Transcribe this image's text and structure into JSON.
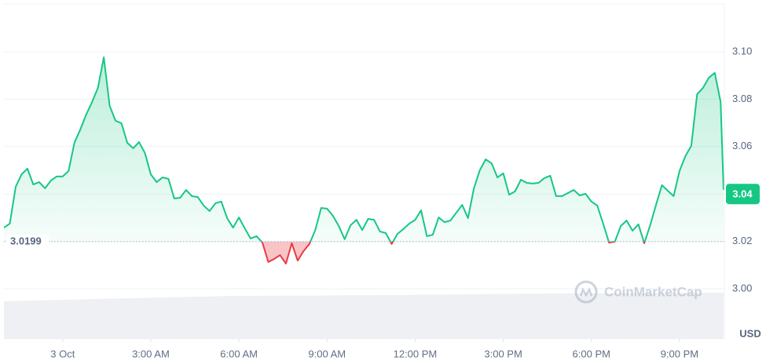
{
  "chart_data": {
    "type": "line",
    "x": [
      -2.0,
      -1.8,
      -1.6,
      -1.4,
      -1.2,
      -1.0,
      -0.8,
      -0.6,
      -0.4,
      -0.2,
      0.0,
      0.2,
      0.4,
      0.6,
      0.8,
      1.0,
      1.2,
      1.4,
      1.6,
      1.8,
      2.0,
      2.2,
      2.4,
      2.6,
      2.8,
      3.0,
      3.2,
      3.4,
      3.6,
      3.8,
      4.0,
      4.2,
      4.4,
      4.6,
      4.8,
      5.0,
      5.2,
      5.4,
      5.6,
      5.8,
      6.0,
      6.2,
      6.4,
      6.6,
      6.8,
      7.0,
      7.2,
      7.4,
      7.6,
      7.8,
      8.0,
      8.2,
      8.4,
      8.6,
      8.8,
      9.0,
      9.2,
      9.4,
      9.6,
      9.8,
      10.0,
      10.2,
      10.4,
      10.6,
      10.8,
      11.0,
      11.2,
      11.4,
      11.6,
      11.8,
      12.0,
      12.2,
      12.4,
      12.6,
      12.8,
      13.0,
      13.2,
      13.4,
      13.6,
      13.8,
      14.0,
      14.2,
      14.4,
      14.6,
      14.8,
      15.0,
      15.2,
      15.4,
      15.6,
      15.8,
      16.0,
      16.2,
      16.4,
      16.6,
      16.8,
      17.0,
      17.2,
      17.4,
      17.6,
      17.8,
      18.0,
      18.2,
      18.4,
      18.6,
      18.8,
      19.0,
      19.2,
      19.4,
      19.6,
      19.8,
      20.0,
      20.2,
      20.4,
      20.6,
      20.8,
      21.0,
      21.2,
      21.4,
      21.6,
      21.8,
      22.0,
      22.2,
      22.4,
      22.5
    ],
    "series": [
      {
        "name": "USD",
        "color": "#16c784",
        "below_color": "#ea3943",
        "values": [
          3.0258,
          3.0275,
          3.043,
          3.0483,
          3.0507,
          3.044,
          3.045,
          3.0424,
          3.0457,
          3.0474,
          3.0474,
          3.0497,
          3.0616,
          3.0672,
          3.0735,
          3.0788,
          3.0848,
          3.0977,
          3.0772,
          3.0709,
          3.0699,
          3.0616,
          3.0593,
          3.0619,
          3.0573,
          3.0483,
          3.045,
          3.047,
          3.0464,
          3.0381,
          3.0384,
          3.0417,
          3.0391,
          3.0387,
          3.0351,
          3.0328,
          3.0361,
          3.0368,
          3.0298,
          3.0258,
          3.0301,
          3.0255,
          3.0212,
          3.0222,
          3.0195,
          3.0113,
          3.0126,
          3.0142,
          3.0106,
          3.0192,
          3.0119,
          3.0159,
          3.0189,
          3.0248,
          3.0341,
          3.0338,
          3.0308,
          3.0265,
          3.0209,
          3.0268,
          3.0291,
          3.0248,
          3.0295,
          3.0291,
          3.0242,
          3.0235,
          3.0189,
          3.0232,
          3.0252,
          3.0275,
          3.0291,
          3.0331,
          3.0222,
          3.0228,
          3.0301,
          3.0281,
          3.0288,
          3.0321,
          3.0354,
          3.0298,
          3.0424,
          3.05,
          3.0546,
          3.053,
          3.047,
          3.0487,
          3.0397,
          3.0411,
          3.046,
          3.0447,
          3.0444,
          3.0447,
          3.0467,
          3.0477,
          3.0391,
          3.0391,
          3.0404,
          3.0417,
          3.0394,
          3.0401,
          3.0368,
          3.0351,
          3.0275,
          3.0195,
          3.0199,
          3.0265,
          3.0288,
          3.0245,
          3.0272,
          3.0192,
          3.0268,
          3.0354,
          3.0437,
          3.0414,
          3.0391,
          3.0497,
          3.056,
          3.0603,
          3.0821,
          3.0848,
          3.0891,
          3.0911,
          3.0788,
          3.0417
        ]
      }
    ],
    "xlim": [
      -2,
      22.5
    ],
    "ylim": [
      2.9788,
      3.1202
    ],
    "xticks": [
      {
        "value": 0,
        "label": "3 Oct"
      },
      {
        "value": 3,
        "label": "3:00 AM"
      },
      {
        "value": 6,
        "label": "6:00 AM"
      },
      {
        "value": 9,
        "label": "9:00 AM"
      },
      {
        "value": 12,
        "label": "12:00 PM"
      },
      {
        "value": 15,
        "label": "3:00 PM"
      },
      {
        "value": 18,
        "label": "6:00 PM"
      },
      {
        "value": 21,
        "label": "9:00 PM"
      }
    ],
    "yticks": [
      {
        "value": 3,
        "label": "3.00"
      },
      3.02,
      3.04,
      3.06,
      3.08,
      {
        "value": 3.1,
        "label": "3.10"
      }
    ],
    "current_tick_index": 2,
    "baseline": 3.0199,
    "grid": true,
    "y_unit": "USD",
    "watermark": "CoinMarketCap"
  }
}
